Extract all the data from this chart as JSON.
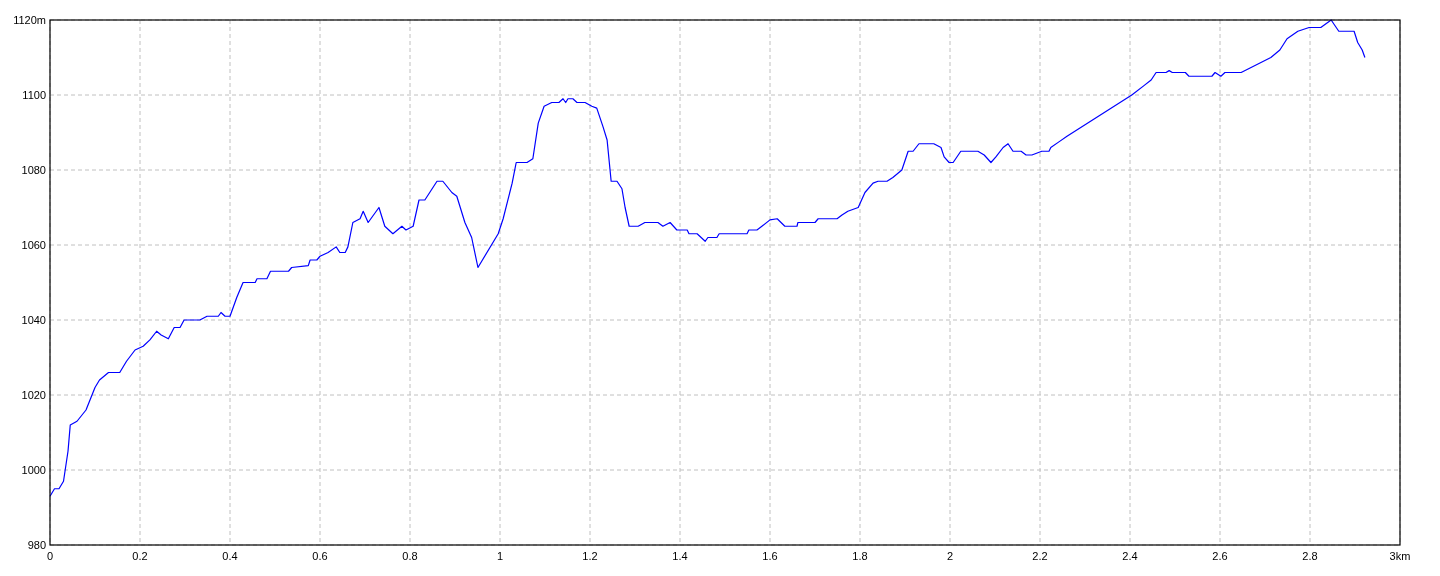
{
  "chart_data": {
    "type": "line",
    "x": [
      0,
      0.01,
      0.02,
      0.03,
      0.04,
      0.045,
      0.06,
      0.08,
      0.09,
      0.1,
      0.11,
      0.13,
      0.155,
      0.17,
      0.189,
      0.207,
      0.222,
      0.237,
      0.247,
      0.263,
      0.276,
      0.289,
      0.298,
      0.333,
      0.349,
      0.374,
      0.38,
      0.389,
      0.4,
      0.415,
      0.429,
      0.456,
      0.46,
      0.482,
      0.49,
      0.53,
      0.537,
      0.574,
      0.578,
      0.593,
      0.6,
      0.618,
      0.636,
      0.644,
      0.656,
      0.662,
      0.673,
      0.689,
      0.696,
      0.707,
      0.731,
      0.744,
      0.762,
      0.782,
      0.791,
      0.807,
      0.82,
      0.833,
      0.86,
      0.873,
      0.893,
      0.904,
      0.922,
      0.937,
      0.951,
      0.996,
      1.007,
      1.027,
      1.036,
      1.06,
      1.073,
      1.085,
      1.098,
      1.115,
      1.131,
      1.14,
      1.146,
      1.151,
      1.162,
      1.171,
      1.189,
      1.204,
      1.215,
      1.229,
      1.238,
      1.247,
      1.26,
      1.271,
      1.278,
      1.287,
      1.307,
      1.322,
      1.351,
      1.362,
      1.378,
      1.393,
      1.416,
      1.42,
      1.438,
      1.456,
      1.462,
      1.482,
      1.487,
      1.549,
      1.553,
      1.571,
      1.582,
      1.6,
      1.616,
      1.633,
      1.66,
      1.662,
      1.7,
      1.707,
      1.749,
      1.76,
      1.773,
      1.796,
      1.811,
      1.829,
      1.84,
      1.86,
      1.873,
      1.893,
      1.907,
      1.918,
      1.931,
      1.964,
      1.98,
      1.987,
      1.998,
      2.007,
      2.024,
      2.062,
      2.076,
      2.091,
      2.102,
      2.118,
      2.129,
      2.14,
      2.158,
      2.169,
      2.182,
      2.204,
      2.22,
      2.224,
      2.242,
      2.26,
      2.404,
      2.431,
      2.447,
      2.458,
      2.48,
      2.487,
      2.494,
      2.523,
      2.531,
      2.582,
      2.589,
      2.602,
      2.611,
      2.647,
      2.713,
      2.733,
      2.749,
      2.773,
      2.798,
      2.824,
      2.847,
      2.864,
      2.898,
      2.906,
      2.916,
      2.922
    ],
    "series": [
      {
        "color": "#0000ff",
        "values": [
          993,
          995,
          995,
          997,
          1005,
          1012,
          1013,
          1016,
          1019,
          1022,
          1024,
          1026,
          1026,
          1029,
          1032,
          1033,
          1034.7,
          1037,
          1036,
          1035,
          1038,
          1038,
          1040,
          1040,
          1041,
          1041,
          1042,
          1041,
          1041,
          1046,
          1050,
          1050,
          1051,
          1051,
          1053,
          1053,
          1054,
          1054.5,
          1056,
          1056,
          1057,
          1058,
          1059.5,
          1058,
          1058,
          1059.5,
          1066,
          1067,
          1069,
          1066,
          1070,
          1065,
          1063,
          1065,
          1064,
          1065,
          1072,
          1072,
          1077,
          1077,
          1074,
          1073,
          1066,
          1062,
          1054,
          1063,
          1067,
          1076.5,
          1082,
          1082,
          1083,
          1092.5,
          1097,
          1098,
          1098,
          1099,
          1098,
          1099,
          1099,
          1098,
          1098,
          1097,
          1096.5,
          1091.5,
          1088,
          1077,
          1077,
          1075,
          1070,
          1065,
          1065,
          1066,
          1066,
          1065,
          1066,
          1064,
          1064,
          1063,
          1063,
          1061,
          1062,
          1062,
          1063,
          1063,
          1064,
          1064,
          1065,
          1066.7,
          1067,
          1065,
          1065,
          1066,
          1066,
          1067,
          1067,
          1068,
          1069,
          1070,
          1074,
          1076.5,
          1077,
          1077,
          1078,
          1080,
          1085,
          1085,
          1087,
          1087,
          1086,
          1083.5,
          1082,
          1082,
          1085,
          1085,
          1084,
          1082,
          1083.5,
          1086,
          1087,
          1085,
          1085,
          1084,
          1084,
          1085,
          1085,
          1086,
          1087.5,
          1089,
          1100,
          1102.5,
          1104,
          1106,
          1106,
          1106.5,
          1106,
          1106,
          1105,
          1105,
          1106,
          1105,
          1106,
          1106,
          1110,
          1112,
          1115,
          1117,
          1118,
          1118,
          1120,
          1117,
          1117,
          1114,
          1112,
          1110
        ]
      }
    ],
    "xlim": [
      0,
      3
    ],
    "ylim": [
      980,
      1120
    ],
    "xticks": [
      0,
      0.2,
      0.4,
      0.6,
      0.8,
      1,
      1.2,
      1.4,
      1.6,
      1.8,
      2,
      2.2,
      2.4,
      2.6,
      2.8,
      {
        "value": 3,
        "label": "3km"
      }
    ],
    "yticks": [
      980,
      1000,
      1020,
      1040,
      1060,
      1080,
      1100,
      {
        "value": 1120,
        "label": "1120m"
      }
    ],
    "grid": true
  }
}
